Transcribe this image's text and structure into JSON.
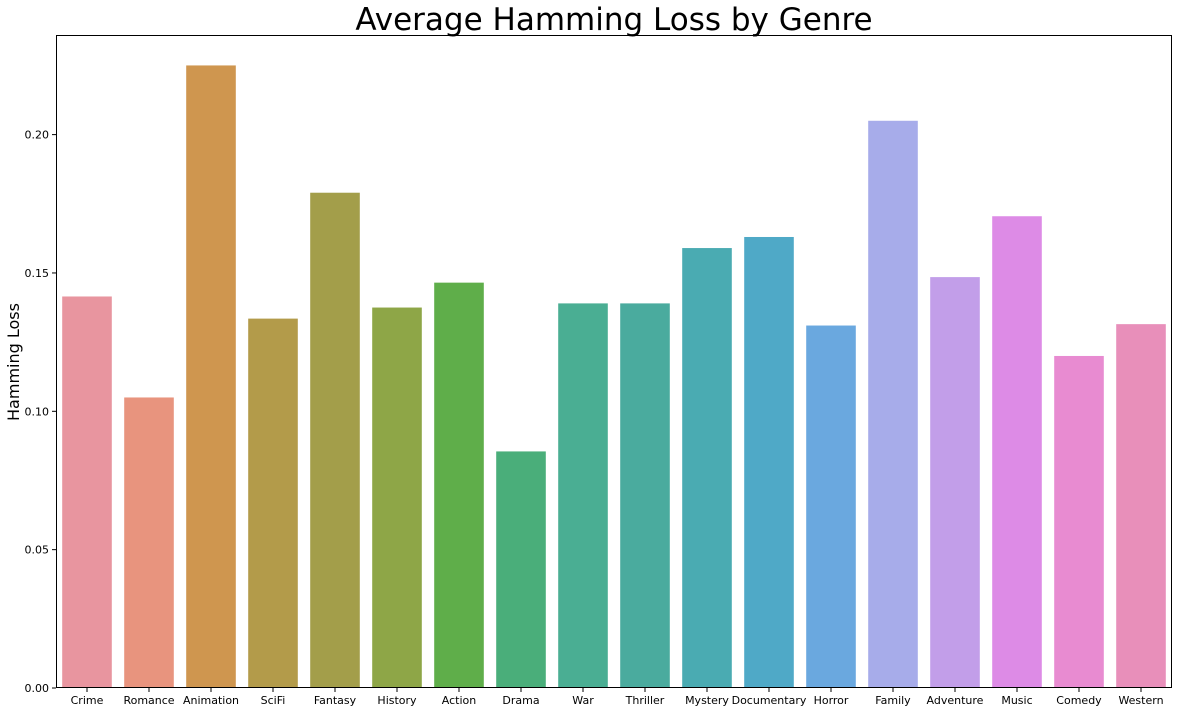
{
  "chart_data": {
    "type": "bar",
    "title": "Average Hamming Loss by Genre",
    "xlabel": "",
    "ylabel": "Hamming Loss",
    "categories": [
      "Crime",
      "Romance",
      "Animation",
      "SciFi",
      "Fantasy",
      "History",
      "Action",
      "Drama",
      "War",
      "Thriller",
      "Mystery",
      "Documentary",
      "Horror",
      "Family",
      "Adventure",
      "Music",
      "Comedy",
      "Western"
    ],
    "values": [
      0.1415,
      0.105,
      0.225,
      0.1335,
      0.179,
      0.1375,
      0.1465,
      0.0855,
      0.139,
      0.139,
      0.159,
      0.163,
      0.131,
      0.205,
      0.1485,
      0.1705,
      0.12,
      0.1315
    ],
    "colors": [
      "#e8959f",
      "#e8947e",
      "#cf964f",
      "#b39b4a",
      "#a39e4a",
      "#8ea647",
      "#5fae4a",
      "#4aae7a",
      "#4aae93",
      "#4aab9e",
      "#4aabb2",
      "#4fa9c7",
      "#6aa8df",
      "#a7acea",
      "#c29ee9",
      "#dd8be6",
      "#e88bd1",
      "#e88fba"
    ],
    "ylim": [
      0,
      0.236
    ],
    "yticks": [
      0.0,
      0.05,
      0.1,
      0.15,
      0.2
    ],
    "ytick_labels": [
      "0.00",
      "0.05",
      "0.10",
      "0.15",
      "0.20"
    ],
    "grid": false,
    "legend": "none"
  }
}
